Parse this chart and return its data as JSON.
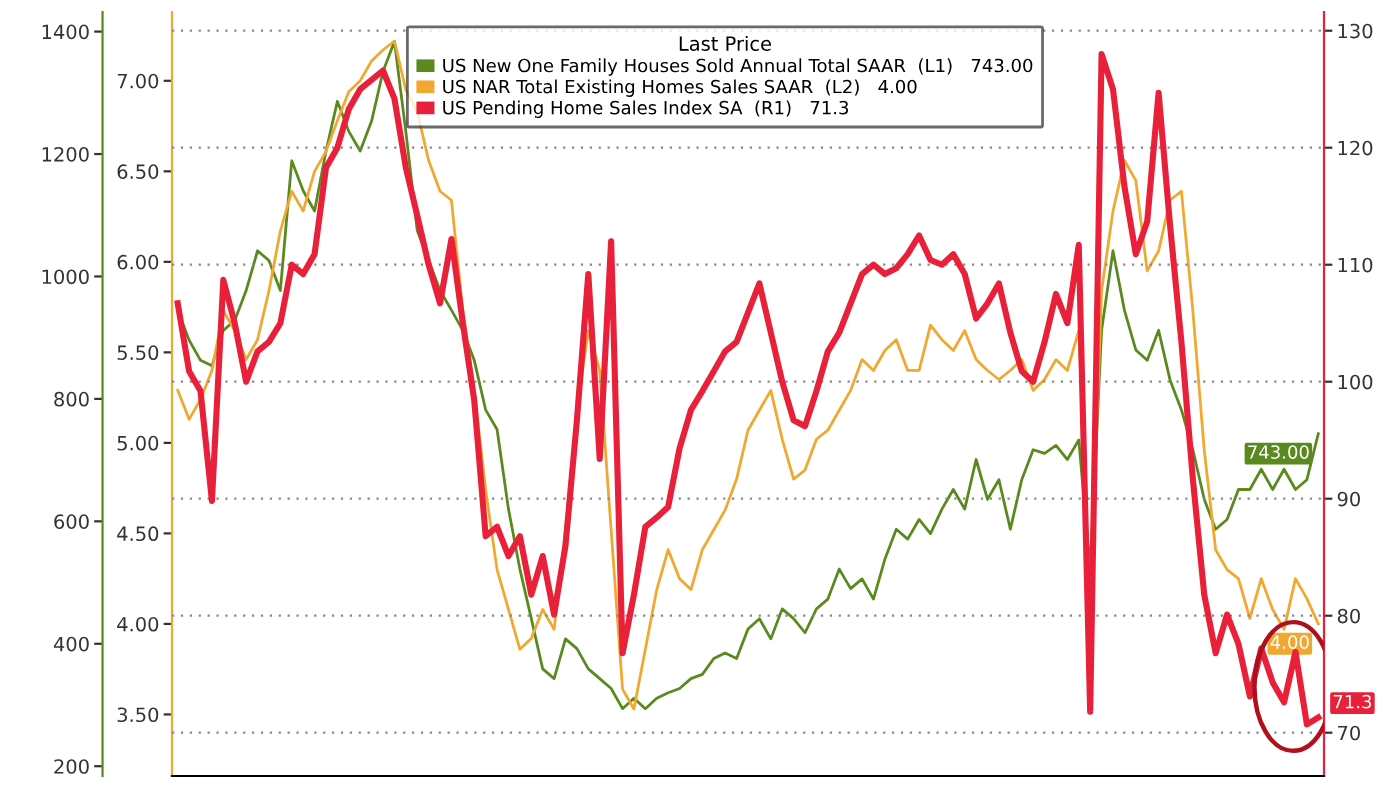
{
  "chart_data": {
    "type": "line",
    "categories": [
      null,
      null,
      null,
      null,
      null,
      null,
      null,
      null,
      null,
      null,
      null,
      null,
      null,
      null,
      null,
      null,
      null,
      null,
      null,
      null,
      null,
      null,
      null,
      null,
      null,
      null,
      null,
      null,
      null,
      null,
      null,
      null,
      null,
      null,
      null,
      null,
      null,
      null,
      null,
      null,
      null,
      null,
      null,
      null,
      null,
      null,
      null,
      null,
      null,
      null,
      null,
      null,
      null,
      null,
      null,
      null,
      null,
      null,
      null,
      null,
      null,
      null,
      null,
      null,
      null,
      null,
      null,
      null,
      null,
      null,
      null,
      null,
      null,
      null,
      null,
      null,
      null,
      null,
      null,
      null,
      null,
      null,
      null,
      null,
      null,
      null,
      null,
      null,
      null,
      null,
      null,
      null,
      null,
      null,
      null,
      null,
      null,
      null,
      null,
      null,
      null
    ],
    "legend_title": "Last Price",
    "legend": "top",
    "grid": "y",
    "series": [
      {
        "name": "US New One Family Houses Sold Annual Total SAAR  (L1)   743.00",
        "axis": "y2",
        "color": "#5a8a1e",
        "values": [
          945,
          896,
          863,
          854,
          912,
          928,
          977,
          1042,
          1026,
          977,
          1189,
          1140,
          1107,
          1205,
          1286,
          1237,
          1205,
          1254,
          1335,
          1384,
          1237,
          1075,
          1026,
          977,
          945,
          912,
          863,
          782,
          750,
          620,
          522,
          441,
          359,
          343,
          408,
          392,
          359,
          343,
          327,
          294,
          311,
          294,
          311,
          320,
          327,
          343,
          350,
          376,
          385,
          376,
          424,
          441,
          408,
          457,
          441,
          418,
          457,
          473,
          522,
          490,
          506,
          473,
          538,
          587,
          571,
          603,
          580,
          620,
          652,
          620,
          701,
          636,
          668,
          587,
          668,
          717,
          711,
          724,
          701,
          733,
          522,
          912,
          1042,
          945,
          880,
          863,
          912,
          831,
          782,
          717,
          636,
          587,
          603,
          652,
          652,
          685,
          652,
          685,
          652,
          668,
          743
        ],
        "value_labels": [
          null,
          null,
          null,
          null,
          null,
          null,
          null,
          null,
          null,
          null,
          null,
          null,
          null,
          null,
          null,
          null,
          null,
          null,
          null,
          null,
          null,
          null,
          null,
          null,
          null,
          null,
          null,
          null,
          null,
          null,
          null,
          null,
          null,
          null,
          null,
          null,
          null,
          null,
          null,
          null,
          null,
          null,
          null,
          null,
          null,
          null,
          null,
          null,
          null,
          null,
          null,
          null,
          null,
          null,
          null,
          null,
          null,
          null,
          null,
          null,
          null,
          null,
          null,
          null,
          null,
          null,
          null,
          null,
          null,
          null,
          null,
          null,
          null,
          null,
          null,
          null,
          null,
          null,
          null,
          null,
          null,
          null,
          null,
          null,
          null,
          null,
          null,
          null,
          null,
          null,
          null,
          null,
          null,
          null,
          null,
          null,
          null,
          null,
          null,
          null,
          "743.00"
        ]
      },
      {
        "name": "US NAR Total Existing Homes Sales SAAR  (L2)   4.00",
        "axis": "y3",
        "color": "#f0a830",
        "values": [
          5.29,
          5.13,
          5.24,
          5.4,
          5.73,
          5.62,
          5.46,
          5.57,
          5.84,
          6.17,
          6.39,
          6.28,
          6.5,
          6.61,
          6.78,
          6.94,
          7.0,
          7.11,
          7.17,
          7.22,
          6.95,
          6.83,
          6.56,
          6.39,
          6.34,
          5.73,
          5.29,
          4.74,
          4.3,
          4.08,
          3.86,
          3.92,
          4.08,
          3.97,
          4.52,
          5.18,
          5.62,
          5.4,
          4.52,
          3.64,
          3.53,
          3.86,
          4.19,
          4.41,
          4.25,
          4.19,
          4.41,
          4.52,
          4.63,
          4.8,
          5.07,
          5.18,
          5.29,
          5.02,
          4.8,
          4.85,
          5.02,
          5.07,
          5.18,
          5.29,
          5.46,
          5.4,
          5.51,
          5.57,
          5.4,
          5.4,
          5.65,
          5.57,
          5.51,
          5.62,
          5.46,
          5.4,
          5.35,
          5.4,
          5.46,
          5.29,
          5.35,
          5.46,
          5.4,
          5.62,
          4.08,
          5.84,
          6.28,
          6.56,
          6.45,
          5.95,
          6.06,
          6.34,
          6.39,
          5.73,
          4.96,
          4.41,
          4.3,
          4.25,
          4.03,
          4.25,
          4.08,
          3.97,
          4.25,
          4.14,
          4.0
        ],
        "value_labels": [
          null,
          null,
          null,
          null,
          null,
          null,
          null,
          null,
          null,
          null,
          null,
          null,
          null,
          null,
          null,
          null,
          null,
          null,
          null,
          null,
          null,
          null,
          null,
          null,
          null,
          null,
          null,
          null,
          null,
          null,
          null,
          null,
          null,
          null,
          null,
          null,
          null,
          null,
          null,
          null,
          null,
          null,
          null,
          null,
          null,
          null,
          null,
          null,
          null,
          null,
          null,
          null,
          null,
          null,
          null,
          null,
          null,
          null,
          null,
          null,
          null,
          null,
          null,
          null,
          null,
          null,
          null,
          null,
          null,
          null,
          null,
          null,
          null,
          null,
          null,
          null,
          null,
          null,
          null,
          null,
          null,
          null,
          null,
          null,
          null,
          null,
          null,
          null,
          null,
          null,
          null,
          null,
          null,
          null,
          null,
          null,
          null,
          null,
          null,
          null,
          "4.00"
        ]
      },
      {
        "name": "US Pending Home Sales Index SA  (R1)   71.3",
        "axis": "y",
        "color": "#e8203a",
        "values": [
          106.7,
          100.9,
          99.2,
          89.8,
          108.7,
          105.0,
          100.0,
          102.6,
          103.4,
          105.0,
          110.0,
          109.2,
          110.9,
          118.3,
          120.0,
          123.3,
          125.0,
          125.8,
          126.6,
          124.2,
          118.3,
          114.2,
          110.0,
          106.7,
          112.2,
          105.0,
          98.4,
          86.8,
          87.6,
          85.1,
          86.8,
          81.8,
          85.1,
          80.1,
          86.0,
          96.7,
          109.2,
          93.4,
          112.0,
          76.8,
          81.8,
          87.6,
          88.4,
          89.3,
          94.3,
          97.6,
          99.2,
          100.9,
          102.6,
          103.4,
          105.9,
          108.4,
          104.2,
          100.0,
          96.7,
          96.2,
          99.2,
          102.6,
          104.2,
          106.7,
          109.2,
          110.0,
          109.2,
          109.7,
          110.9,
          112.5,
          110.4,
          110.0,
          110.9,
          109.2,
          105.4,
          106.7,
          108.4,
          104.2,
          100.9,
          100.0,
          103.4,
          107.5,
          105.0,
          111.7,
          71.8,
          128.0,
          125.0,
          116.7,
          110.9,
          113.7,
          124.7,
          113.4,
          103.4,
          91.7,
          81.8,
          76.8,
          80.1,
          77.6,
          73.1,
          77.2,
          74.3,
          72.6,
          76.9,
          70.7,
          71.3
        ],
        "value_labels": [
          null,
          null,
          null,
          null,
          null,
          null,
          null,
          null,
          null,
          null,
          null,
          null,
          null,
          null,
          null,
          null,
          null,
          null,
          null,
          null,
          null,
          null,
          null,
          null,
          null,
          null,
          null,
          null,
          null,
          null,
          null,
          null,
          null,
          null,
          null,
          null,
          null,
          null,
          null,
          null,
          null,
          null,
          null,
          null,
          null,
          null,
          null,
          null,
          null,
          null,
          null,
          null,
          null,
          null,
          null,
          null,
          null,
          null,
          null,
          null,
          null,
          null,
          null,
          null,
          null,
          null,
          null,
          null,
          null,
          null,
          null,
          null,
          null,
          null,
          null,
          null,
          null,
          null,
          null,
          null,
          null,
          null,
          null,
          null,
          null,
          null,
          null,
          null,
          null,
          null,
          null,
          null,
          null,
          null,
          null,
          null,
          null,
          null,
          null,
          null,
          "71.3"
        ]
      }
    ],
    "ylim": [
      66.3,
      131.6
    ],
    "yticks": [
      70,
      80,
      90,
      100,
      110,
      120,
      130
    ],
    "y2lim": [
      184,
      1432
    ],
    "y2ticks": [
      200,
      400,
      600,
      800,
      1000,
      1200,
      1400
    ],
    "y3lim": [
      3.16,
      7.38
    ],
    "y3ticks": [
      {
        "value": 3.5,
        "label": "3.50"
      },
      {
        "value": 4,
        "label": "4.00"
      },
      {
        "value": 4.5,
        "label": "4.50"
      },
      {
        "value": 5,
        "label": "5.00"
      },
      {
        "value": 5.5,
        "label": "5.50"
      },
      {
        "value": 6,
        "label": "6.00"
      },
      {
        "value": 6.5,
        "label": "6.50"
      },
      {
        "value": 7,
        "label": "7.00"
      }
    ]
  }
}
